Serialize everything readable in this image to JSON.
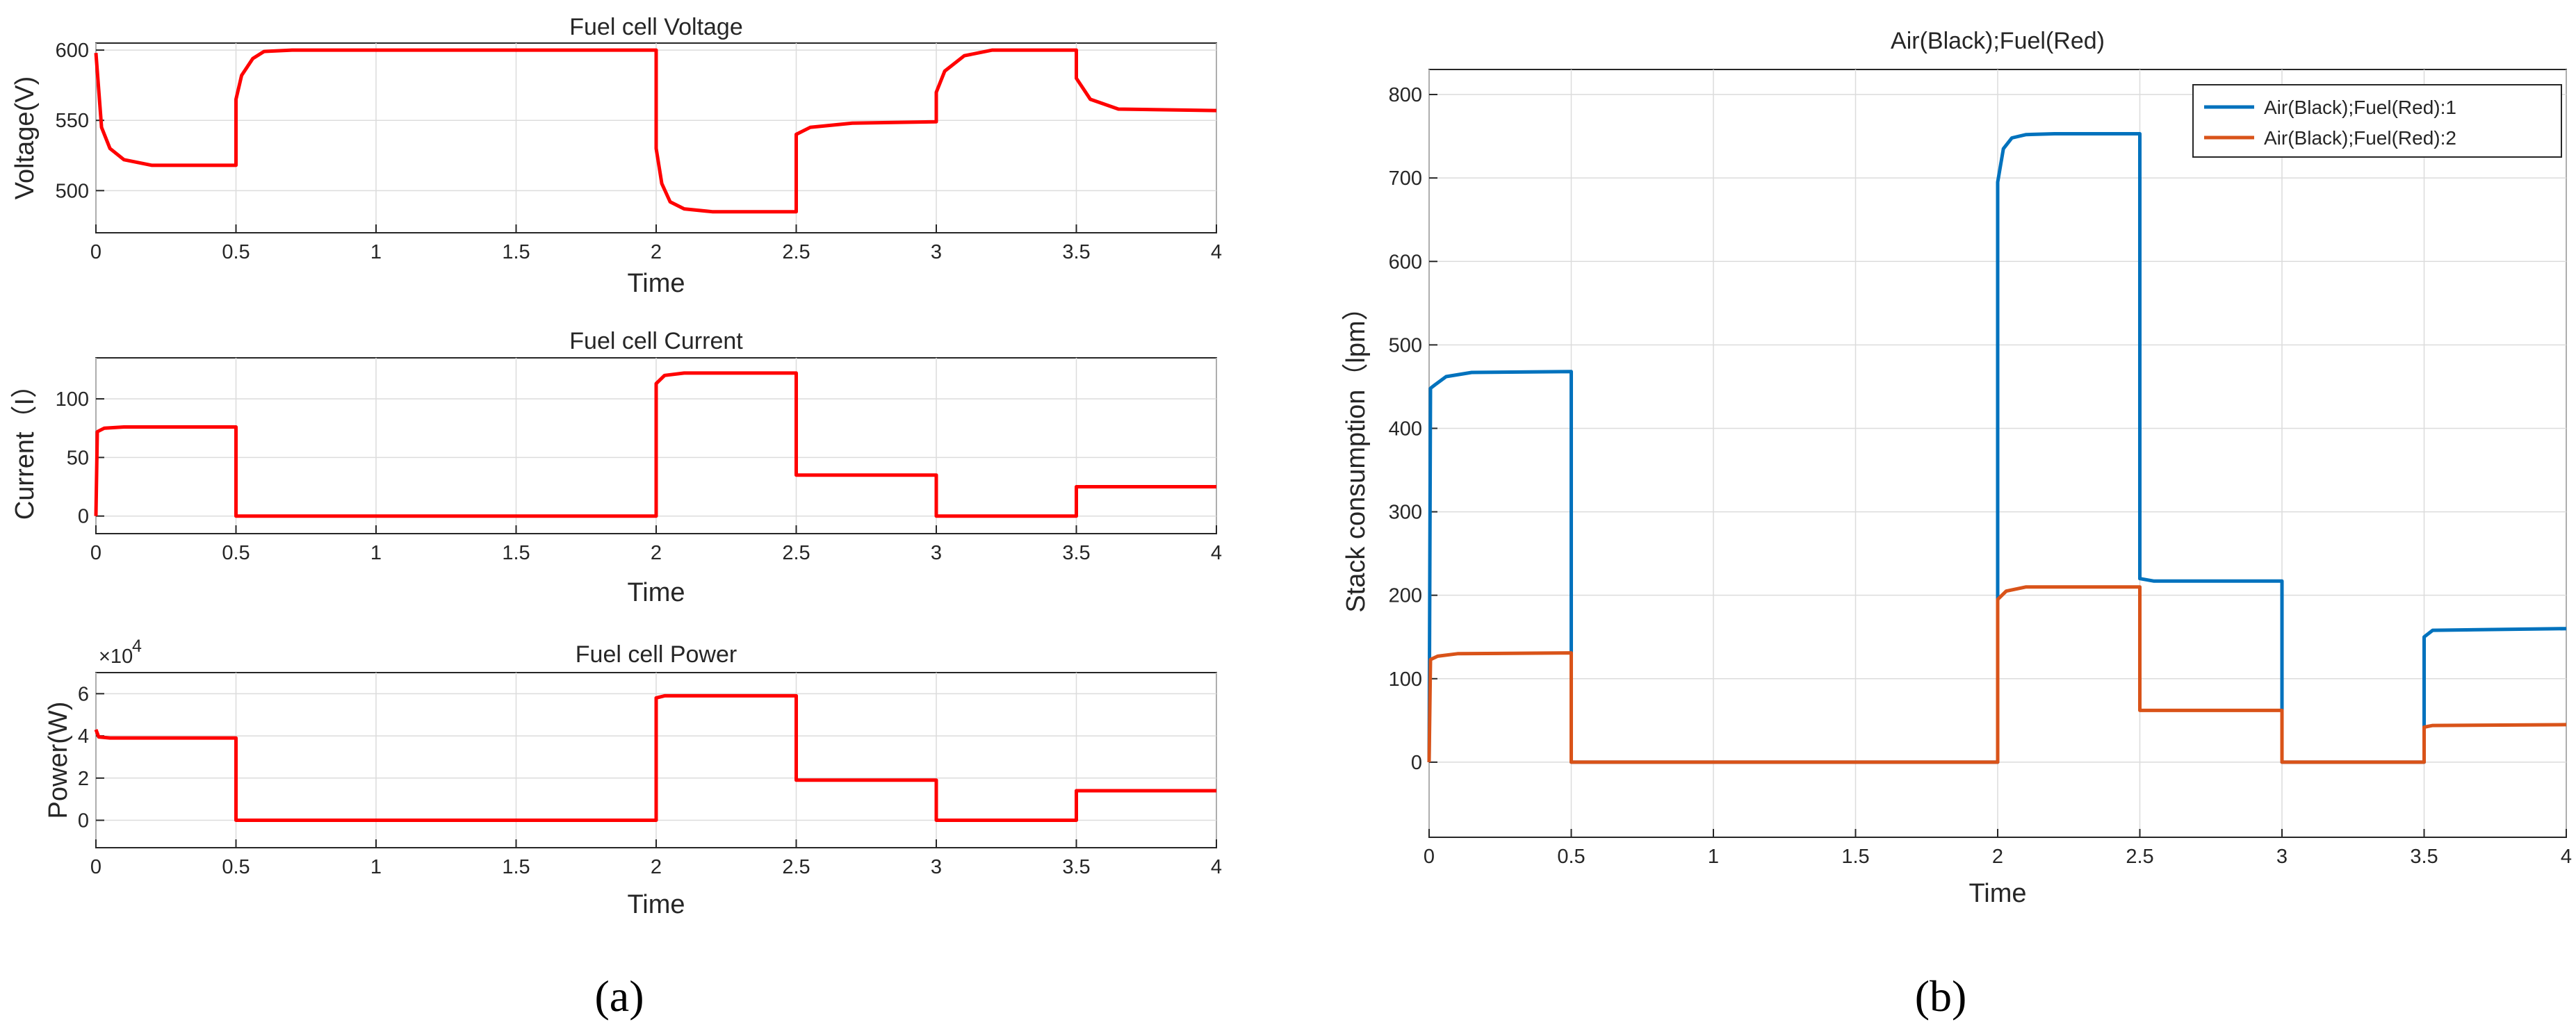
{
  "chart_data": [
    {
      "type": "line",
      "title": "Fuel cell Voltage",
      "xlabel": "Time",
      "ylabel": "Voltage(V)",
      "xlim": [
        0,
        4
      ],
      "ylim": [
        470,
        605
      ],
      "xticks": [
        0,
        0.5,
        1,
        1.5,
        2,
        2.5,
        3,
        3.5,
        4
      ],
      "xtick_labels": [
        "0",
        "0.5",
        "1",
        "1.5",
        "2",
        "2.5",
        "3",
        "3.5",
        "4"
      ],
      "yticks": [
        500,
        550,
        600
      ],
      "ytick_labels": [
        "500",
        "550",
        "600"
      ],
      "grid": true,
      "color": "#ff0000",
      "series": [
        {
          "x": [
            0,
            0.02,
            0.05,
            0.1,
            0.2,
            0.5,
            0.5,
            0.52,
            0.56,
            0.6,
            0.7,
            2.0,
            2.0,
            2.02,
            2.05,
            2.1,
            2.2,
            2.5,
            2.5,
            2.55,
            2.7,
            3.0,
            3.0,
            3.03,
            3.1,
            3.2,
            3.5,
            3.5,
            3.55,
            3.65,
            4.0
          ],
          "y": [
            598,
            545,
            530,
            522,
            518,
            518,
            565,
            582,
            594,
            599,
            600,
            600,
            530,
            505,
            492,
            487,
            485,
            485,
            540,
            545,
            548,
            549,
            570,
            585,
            596,
            600,
            600,
            580,
            565,
            558,
            557
          ]
        }
      ]
    },
    {
      "type": "line",
      "title": "Fuel cell Current",
      "xlabel": "Time",
      "ylabel": "Current（I）",
      "xlim": [
        0,
        4
      ],
      "ylim": [
        -15,
        135
      ],
      "xticks": [
        0,
        0.5,
        1,
        1.5,
        2,
        2.5,
        3,
        3.5,
        4
      ],
      "xtick_labels": [
        "0",
        "0.5",
        "1",
        "1.5",
        "2",
        "2.5",
        "3",
        "3.5",
        "4"
      ],
      "yticks": [
        0,
        50,
        100
      ],
      "ytick_labels": [
        "0",
        "50",
        "100"
      ],
      "grid": true,
      "color": "#ff0000",
      "series": [
        {
          "x": [
            0,
            0.005,
            0.03,
            0.1,
            0.5,
            0.5,
            2.0,
            2.0,
            2.03,
            2.1,
            2.5,
            2.5,
            3.0,
            3.0,
            3.5,
            3.5,
            4.0
          ],
          "y": [
            0,
            72,
            75,
            76,
            76,
            0,
            0,
            113,
            120,
            122,
            122,
            35,
            35,
            0,
            0,
            25,
            25
          ]
        }
      ]
    },
    {
      "type": "line",
      "title": "Fuel cell Power",
      "xlabel": "Time",
      "ylabel": "Power(W)",
      "xlim": [
        0,
        4
      ],
      "ylim": [
        -1.3,
        7
      ],
      "scale_label": "×10",
      "scale_exponent": "4",
      "xticks": [
        0,
        0.5,
        1,
        1.5,
        2,
        2.5,
        3,
        3.5,
        4
      ],
      "xtick_labels": [
        "0",
        "0.5",
        "1",
        "1.5",
        "2",
        "2.5",
        "3",
        "3.5",
        "4"
      ],
      "yticks": [
        0,
        2,
        4,
        6
      ],
      "ytick_labels": [
        "0",
        "2",
        "4",
        "6"
      ],
      "grid": true,
      "color": "#ff0000",
      "series": [
        {
          "x": [
            0,
            0.01,
            0.05,
            0.5,
            0.5,
            2.0,
            2.0,
            2.03,
            2.5,
            2.5,
            3.0,
            3.0,
            3.5,
            3.5,
            4.0
          ],
          "y": [
            4.3,
            3.95,
            3.9,
            3.9,
            0,
            0,
            5.8,
            5.9,
            5.9,
            1.9,
            1.9,
            0,
            0,
            1.4,
            1.4
          ]
        }
      ]
    },
    {
      "type": "line",
      "title": "Air(Black);Fuel(Red)",
      "xlabel": "Time",
      "ylabel": "Stack consumption（lpm）",
      "xlim": [
        0,
        4
      ],
      "ylim": [
        -90,
        830
      ],
      "xticks": [
        0,
        0.5,
        1,
        1.5,
        2,
        2.5,
        3,
        3.5,
        4
      ],
      "xtick_labels": [
        "0",
        "0.5",
        "1",
        "1.5",
        "2",
        "2.5",
        "3",
        "3.5",
        "4"
      ],
      "yticks": [
        0,
        100,
        200,
        300,
        400,
        500,
        600,
        700,
        800
      ],
      "ytick_labels": [
        "0",
        "100",
        "200",
        "300",
        "400",
        "500",
        "600",
        "700",
        "800"
      ],
      "grid": true,
      "legend": "top-right",
      "series": [
        {
          "name": "Air(Black);Fuel(Red):1",
          "color": "#0072bd",
          "x": [
            0,
            0.005,
            0.02,
            0.06,
            0.15,
            0.5,
            0.5,
            2.0,
            2.0,
            2.02,
            2.05,
            2.1,
            2.2,
            2.5,
            2.5,
            2.55,
            3.0,
            3.0,
            3.5,
            3.5,
            3.53,
            4.0
          ],
          "y": [
            0,
            448,
            452,
            462,
            467,
            468,
            0,
            0,
            695,
            735,
            748,
            752,
            753,
            753,
            220,
            217,
            217,
            0,
            0,
            150,
            158,
            160
          ]
        },
        {
          "name": "Air(Black);Fuel(Red):2",
          "color": "#d95319",
          "x": [
            0,
            0.005,
            0.03,
            0.1,
            0.5,
            0.5,
            2.0,
            2.0,
            2.03,
            2.1,
            2.5,
            2.5,
            3.0,
            3.0,
            3.5,
            3.5,
            3.53,
            4.0
          ],
          "y": [
            0,
            123,
            127,
            130,
            131,
            0,
            0,
            195,
            205,
            210,
            210,
            62,
            62,
            0,
            0,
            42,
            44,
            45
          ]
        }
      ]
    }
  ],
  "panel_labels": [
    "(a)",
    "(b)"
  ]
}
